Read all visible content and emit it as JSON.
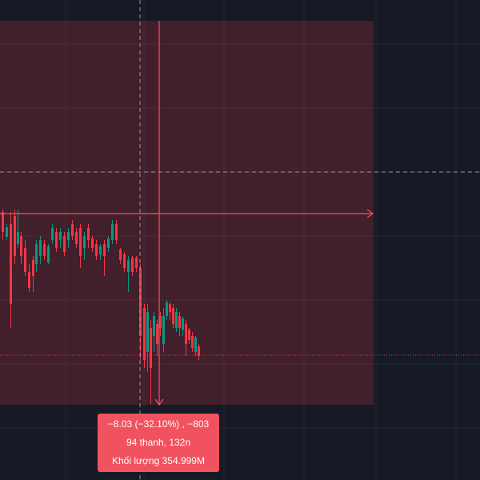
{
  "measure": {
    "change": "−8.03 (−32.10%) , −803",
    "bars": "94 thanh, 132n",
    "volume": "Khối lượng 354.999M"
  }
}
